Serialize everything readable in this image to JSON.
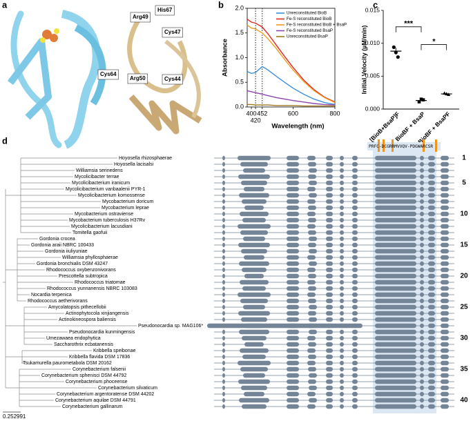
{
  "panel_labels": [
    "a",
    "b",
    "c",
    "d"
  ],
  "structure_labels": [
    "Arg49",
    "His67",
    "Cys47",
    "Cys64",
    "Arg50",
    "Cys44"
  ],
  "chart_data": [
    {
      "type": "line",
      "x_label": "Wavelength (nm)",
      "y_label": "Absorbance",
      "x": [
        380,
        400,
        420,
        452,
        480,
        520,
        560,
        600,
        650,
        700,
        750,
        800
      ],
      "xlim": [
        380,
        800
      ],
      "xticks": [
        400,
        420,
        452,
        600,
        800
      ],
      "vlines": [
        420,
        452
      ],
      "ylim": [
        0,
        2
      ],
      "yticks": [
        {
          "value": 0,
          "label": "0.0"
        },
        {
          "value": 0.5,
          "label": "0.5"
        },
        {
          "value": 1,
          "label": "1.0"
        },
        {
          "value": 1.5,
          "label": "1.5"
        },
        {
          "value": 2,
          "label": "2.0"
        }
      ],
      "series": [
        {
          "name": "Unreconstituted BioB",
          "color": "#3b8fd9",
          "values": [
            0.72,
            0.68,
            0.7,
            0.82,
            0.75,
            0.62,
            0.5,
            0.38,
            0.26,
            0.16,
            0.09,
            0.05
          ]
        },
        {
          "name": "Fe-S reconstituted BioB",
          "color": "#e0281e",
          "values": [
            1.78,
            1.72,
            1.7,
            1.62,
            1.48,
            1.25,
            1.02,
            0.8,
            0.55,
            0.35,
            0.2,
            0.1
          ]
        },
        {
          "name": "Fe-S reconstituted BioB + BsaP",
          "color": "#f29a1f",
          "values": [
            1.66,
            1.6,
            1.58,
            1.5,
            1.38,
            1.18,
            0.96,
            0.75,
            0.52,
            0.33,
            0.19,
            0.09
          ]
        },
        {
          "name": "Fe-S reconstituted BsaP",
          "color": "#8e44ad",
          "values": [
            0.33,
            0.31,
            0.29,
            0.26,
            0.23,
            0.19,
            0.16,
            0.13,
            0.1,
            0.07,
            0.05,
            0.04
          ]
        },
        {
          "name": "Unreconstituted BsaP",
          "color": "#a0781e",
          "values": [
            0.05,
            0.05,
            0.04,
            0.04,
            0.04,
            0.03,
            0.03,
            0.03,
            0.02,
            0.02,
            0.02,
            0.02
          ]
        }
      ]
    },
    {
      "type": "dot",
      "y_label": "Initial Velocity (µM/min)",
      "categories": [
        "[BioB+BsaP]F",
        "BioBF + BsaP",
        "BioBF + BsaPF"
      ],
      "values": [
        0.0088,
        0.0013,
        0.0023
      ],
      "errors": [
        0.0005,
        0.0001,
        0.0001
      ],
      "points": [
        [
          0.0094,
          0.0086,
          0.0079
        ],
        [
          0.0011,
          0.0015,
          0.0014
        ],
        [
          0.0024,
          0.0023,
          0.0022
        ]
      ],
      "ylim": [
        0,
        0.015
      ],
      "yticks": [
        {
          "value": 0,
          "label": "0.000"
        },
        {
          "value": 0.005,
          "label": "0.005"
        },
        {
          "value": 0.01,
          "label": "0.010"
        },
        {
          "value": 0.015,
          "label": "0.015"
        }
      ],
      "annotations": [
        {
          "text": "***",
          "between": [
            0,
            1
          ],
          "y": 0.0125
        },
        {
          "text": "*",
          "between": [
            1,
            2
          ],
          "y": 0.0098
        }
      ]
    }
  ],
  "tree": {
    "scale_bar": "0.252991",
    "sequence": "PRFC-DCGRRMVVQV-PDGWARCSR",
    "row_numbers": [
      1,
      5,
      10,
      15,
      20,
      25,
      30,
      35,
      40
    ],
    "leaves": [
      {
        "name": "Hoyosella rhizosphaerae",
        "color": "#7a7a7a"
      },
      {
        "name": "Hoyosella lacisalsi",
        "color": "#7a7a7a"
      },
      {
        "name": "Williamsia serinedens",
        "color": "#2f9be0"
      },
      {
        "name": "Mycolicibacter terrae",
        "color": "#c2188b"
      },
      {
        "name": "Mycolicibacterium iranicum",
        "color": "#c2188b"
      },
      {
        "name": "Mycolicibacterium vanbaalenii PYR-1",
        "color": "#c2188b"
      },
      {
        "name": "Mycolicibacterium komossense",
        "color": "#c2188b"
      },
      {
        "name": "Mycobacterium doricum",
        "color": "#c2188b"
      },
      {
        "name": "Mycobacterium leprae",
        "color": "#c2188b"
      },
      {
        "name": "Mycobacterium ostraviense",
        "color": "#c2188b"
      },
      {
        "name": "Mycobacterium tuberculosis H37Rv",
        "color": "#c2188b"
      },
      {
        "name": "Mycolicibacterium lacusdiani",
        "color": "#c2188b"
      },
      {
        "name": "Tomitella gaofuii",
        "color": "#c7262b"
      },
      {
        "name": "Gordonia crocea",
        "color": "#2e7d12"
      },
      {
        "name": "Gordonia araii NBRC 100433",
        "color": "#2e7d12"
      },
      {
        "name": "Gordonia iiuliyuniae",
        "color": "#2e7d12"
      },
      {
        "name": "Williamsia phyllosphaerae",
        "color": "#2f9be0"
      },
      {
        "name": "Gordonia bronchialis DSM 43247",
        "color": "#2e7d12"
      },
      {
        "name": "Rhodococcus oxybenzonivorans",
        "color": "#2f9be0"
      },
      {
        "name": "Prescottella subtropica",
        "color": "#2f9be0"
      },
      {
        "name": "Rhodococcus triatomae",
        "color": "#2f9be0"
      },
      {
        "name": "Rhodococcus yunnanensis NBRC 103083",
        "color": "#2f9be0"
      },
      {
        "name": "Nocardia terpenica",
        "color": "#2f9be0"
      },
      {
        "name": "Rhodococcus aetherivorans",
        "color": "#2f9be0"
      },
      {
        "name": "Amycolatopsis pithecellobii",
        "color": "#1a23c8"
      },
      {
        "name": "Actinophytocola xinjiangensis",
        "color": "#1a23c8"
      },
      {
        "name": "Actinokineospora baliensis",
        "color": "#1a23c8"
      },
      {
        "name": "Pseudonocardia sp. MAG106*",
        "color": "#1a23c8"
      },
      {
        "name": "Pseudonocardia kunmingensis",
        "color": "#1a23c8"
      },
      {
        "name": "Umezawaea endophytica",
        "color": "#1a23c8"
      },
      {
        "name": "Saccharothrix ecbatanensis",
        "color": "#1a23c8"
      },
      {
        "name": "Kribbella speibonae",
        "color": "#e8711d"
      },
      {
        "name": "Kribbella flavida DSM 17836",
        "color": "#e8711d"
      },
      {
        "name": "Tsukamurella paurometabola DSM 20162",
        "color": "#c8713b"
      },
      {
        "name": "Corynebacterium falsenii",
        "color": "#c7262b"
      },
      {
        "name": "Corynebacterium sphenisci DSM 44792",
        "color": "#c7262b"
      },
      {
        "name": "Corynebacterium phoceense",
        "color": "#c7262b"
      },
      {
        "name": "Corynebacterium silvaticum",
        "color": "#c7262b"
      },
      {
        "name": "Corynebacterium argentoratense DSM 44202",
        "color": "#c7262b"
      },
      {
        "name": "Corynebacterium aquilae DSM 44791",
        "color": "#c7262b"
      },
      {
        "name": "Corynebacterium gallinarum",
        "color": "#c7262b"
      }
    ]
  }
}
